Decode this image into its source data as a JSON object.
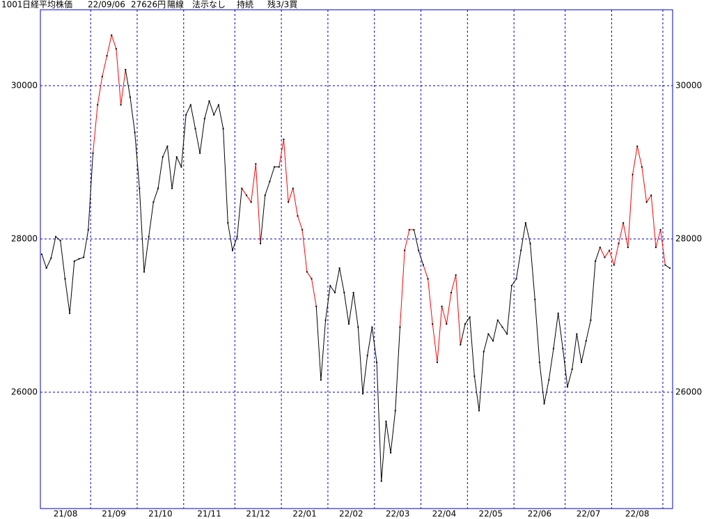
{
  "chart_data": {
    "type": "line",
    "header": [
      "1001",
      "日経平均株価",
      "22/09/06",
      "27626円",
      "陽線",
      "法示なし",
      "持続",
      "残3/3買"
    ],
    "ylim": [
      24482,
      30991
    ],
    "yticks": [
      26000,
      28000,
      30000
    ],
    "grid": true,
    "months": {
      "labels": [
        "21/08",
        "21/09",
        "21/10",
        "21/11",
        "21/12",
        "22/01",
        "22/02",
        "22/03",
        "22/04",
        "22/05",
        "22/06",
        "22/07",
        "22/08",
        null
      ],
      "starts": [
        0,
        11,
        21,
        31,
        42,
        52,
        62,
        72,
        82,
        92,
        102,
        113,
        123,
        134
      ]
    },
    "color": "#000000",
    "highlight": {
      "color": "#ff0000",
      "ranges": [
        [
          11,
          18
        ],
        [
          43,
          47
        ],
        [
          51,
          59
        ],
        [
          77,
          80
        ],
        [
          82,
          90
        ],
        [
          120,
          134
        ]
      ]
    },
    "values": [
      27800,
      27620,
      27750,
      28030,
      27980,
      27480,
      27030,
      27710,
      27740,
      27760,
      28120,
      29120,
      29750,
      30120,
      30390,
      30660,
      30480,
      29750,
      30210,
      29850,
      29390,
      28660,
      27570,
      28030,
      28480,
      28660,
      29070,
      29210,
      28660,
      29070,
      28940,
      29620,
      29750,
      29440,
      29120,
      29570,
      29800,
      29620,
      29750,
      29440,
      28210,
      27850,
      28030,
      28660,
      28570,
      28480,
      28980,
      27940,
      28570,
      28750,
      28940,
      28940,
      29300,
      28480,
      28660,
      28300,
      28120,
      27570,
      27480,
      27120,
      26160,
      26940,
      27390,
      27300,
      27620,
      27300,
      26890,
      27300,
      26850,
      25980,
      26480,
      26850,
      26390,
      24840,
      25620,
      25210,
      25760,
      26850,
      27850,
      28120,
      28120,
      27850,
      27660,
      27480,
      26890,
      26390,
      27120,
      26890,
      27300,
      27530,
      26620,
      26890,
      26980,
      26210,
      25760,
      26530,
      26760,
      26670,
      26940,
      26850,
      26760,
      27390,
      27480,
      27850,
      28210,
      27940,
      27210,
      26390,
      25850,
      26160,
      26570,
      27030,
      26570,
      26070,
      26300,
      26760,
      26390,
      26670,
      26940,
      27710,
      27890,
      27760,
      27850,
      27660,
      27940,
      28210,
      27890,
      28840,
      29210,
      28940,
      28480,
      28570,
      27890,
      28120,
      27660,
      27620
    ]
  }
}
